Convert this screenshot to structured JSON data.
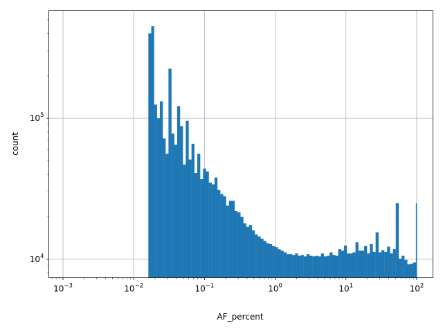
{
  "chart_data": {
    "type": "bar",
    "title": "",
    "xlabel": "AF_percent",
    "ylabel": "count",
    "xscale": "log",
    "yscale": "log",
    "xlim": [
      0.00063,
      170
    ],
    "ylim": [
      7400,
      580000
    ],
    "grid": true,
    "bar_color": "#1f77b4",
    "x_ticks": [
      {
        "value": 0.001,
        "base": "10",
        "exp": "−3"
      },
      {
        "value": 0.01,
        "base": "10",
        "exp": "−2"
      },
      {
        "value": 0.1,
        "base": "10",
        "exp": "−1"
      },
      {
        "value": 1,
        "base": "10",
        "exp": "0"
      },
      {
        "value": 10,
        "base": "10",
        "exp": "1"
      },
      {
        "value": 100,
        "base": "10",
        "exp": "2"
      }
    ],
    "y_ticks": [
      {
        "value": 10000,
        "base": "10",
        "exp": "4"
      },
      {
        "value": 100000,
        "base": "10",
        "exp": "5"
      }
    ],
    "bin_edges": [
      0.0161,
      0.0177,
      0.0194,
      0.0213,
      0.0234,
      0.0257,
      0.0282,
      0.031,
      0.0341,
      0.0374,
      0.0411,
      0.0451,
      0.0495,
      0.0544,
      0.0597,
      0.0656,
      0.072,
      0.0791,
      0.0869,
      0.0954,
      0.1048,
      0.1151,
      0.1264,
      0.1388,
      0.1524,
      0.1673,
      0.1838,
      0.2018,
      0.2216,
      0.2434,
      0.2673,
      0.2935,
      0.3223,
      0.354,
      0.3887,
      0.4269,
      0.4688,
      0.5148,
      0.5654,
      0.6209,
      0.6818,
      0.7487,
      0.8222,
      0.903,
      0.9916,
      1.0889,
      1.196,
      1.313,
      1.442,
      1.584,
      1.739,
      1.91,
      2.097,
      2.303,
      2.529,
      2.777,
      3.05,
      3.349,
      3.678,
      4.039,
      4.436,
      4.871,
      5.349,
      5.874,
      6.451,
      7.085,
      7.78,
      8.544,
      9.383,
      10.3,
      11.32,
      12.43,
      13.65,
      14.99,
      16.46,
      18.08,
      19.85,
      21.8,
      23.94,
      26.29,
      28.87,
      31.71,
      34.82,
      38.24,
      41.99,
      46.12,
      50.64,
      55.62,
      61.08,
      67.07,
      73.66,
      80.89,
      88.83,
      97.55,
      100.5
    ],
    "values": [
      400000,
      450000,
      125000,
      100000,
      132000,
      72000,
      56000,
      225000,
      78000,
      65000,
      122000,
      88000,
      47000,
      96000,
      51000,
      66000,
      41000,
      56000,
      37000,
      44000,
      42000,
      35000,
      34000,
      38000,
      31000,
      29000,
      28000,
      24000,
      26000,
      26000,
      22000,
      21500,
      20000,
      18000,
      17000,
      17500,
      16000,
      15000,
      14500,
      14000,
      13500,
      13000,
      12800,
      12400,
      12200,
      11800,
      11500,
      11200,
      10900,
      10900,
      10700,
      11000,
      10600,
      10700,
      10500,
      10900,
      10600,
      10500,
      10600,
      10500,
      11000,
      10500,
      10600,
      11200,
      10700,
      10600,
      11800,
      11500,
      12500,
      11000,
      11000,
      11200,
      13200,
      11500,
      11500,
      12400,
      11000,
      12800,
      11300,
      15500,
      11200,
      11600,
      11300,
      12300,
      11000,
      11800,
      25000,
      10100,
      10600,
      9900,
      9200,
      9300,
      9500,
      25000
    ]
  }
}
